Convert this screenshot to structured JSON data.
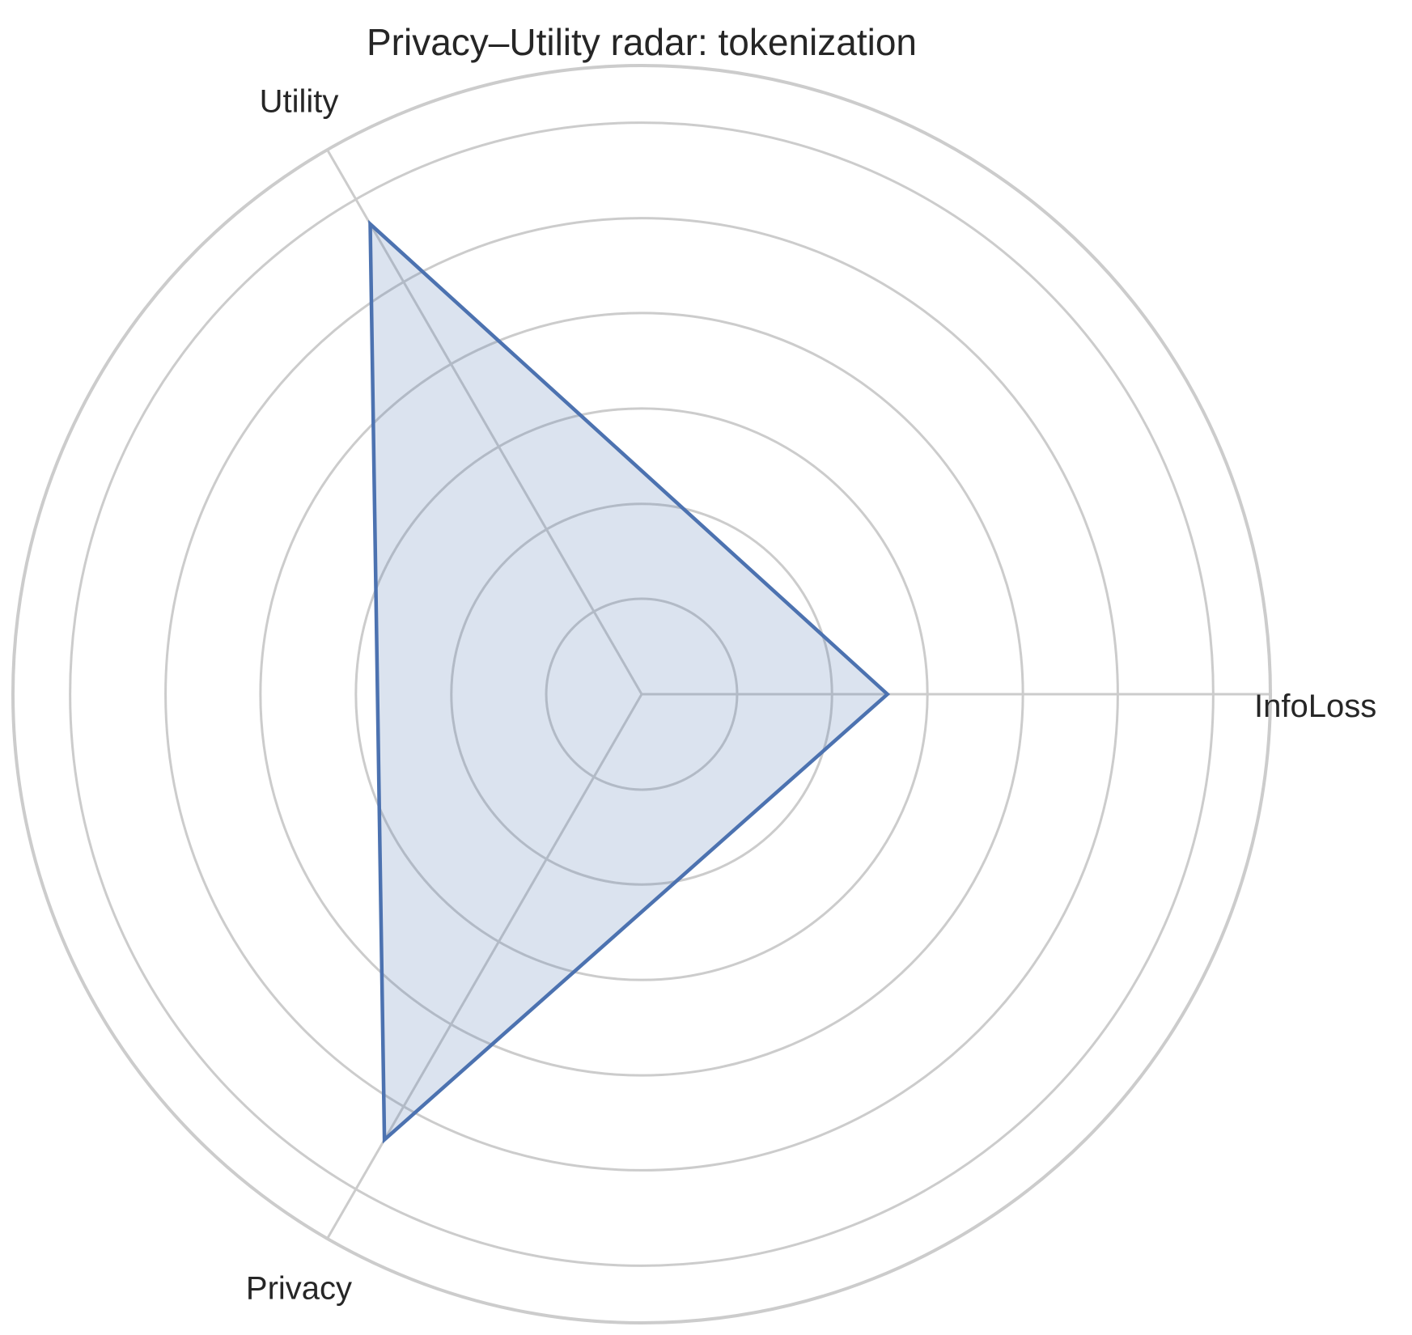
{
  "chart_data": {
    "type": "radar",
    "title": "Privacy–Utility radar: tokenization",
    "axes": [
      "InfoLoss",
      "Utility",
      "Privacy"
    ],
    "series": [
      {
        "values": [
          0.43,
          0.95,
          0.9
        ]
      }
    ],
    "rlim": [
      0,
      1.1
    ],
    "rings": [
      0.167,
      0.333,
      0.5,
      0.667,
      0.833,
      1.0
    ],
    "radial_tick_labels_visible": false,
    "grid": true,
    "colors": {
      "series_line": "#4c72b0",
      "series_fill": "#4c72b0",
      "grid": "#cccccc",
      "text": "#262626"
    }
  }
}
